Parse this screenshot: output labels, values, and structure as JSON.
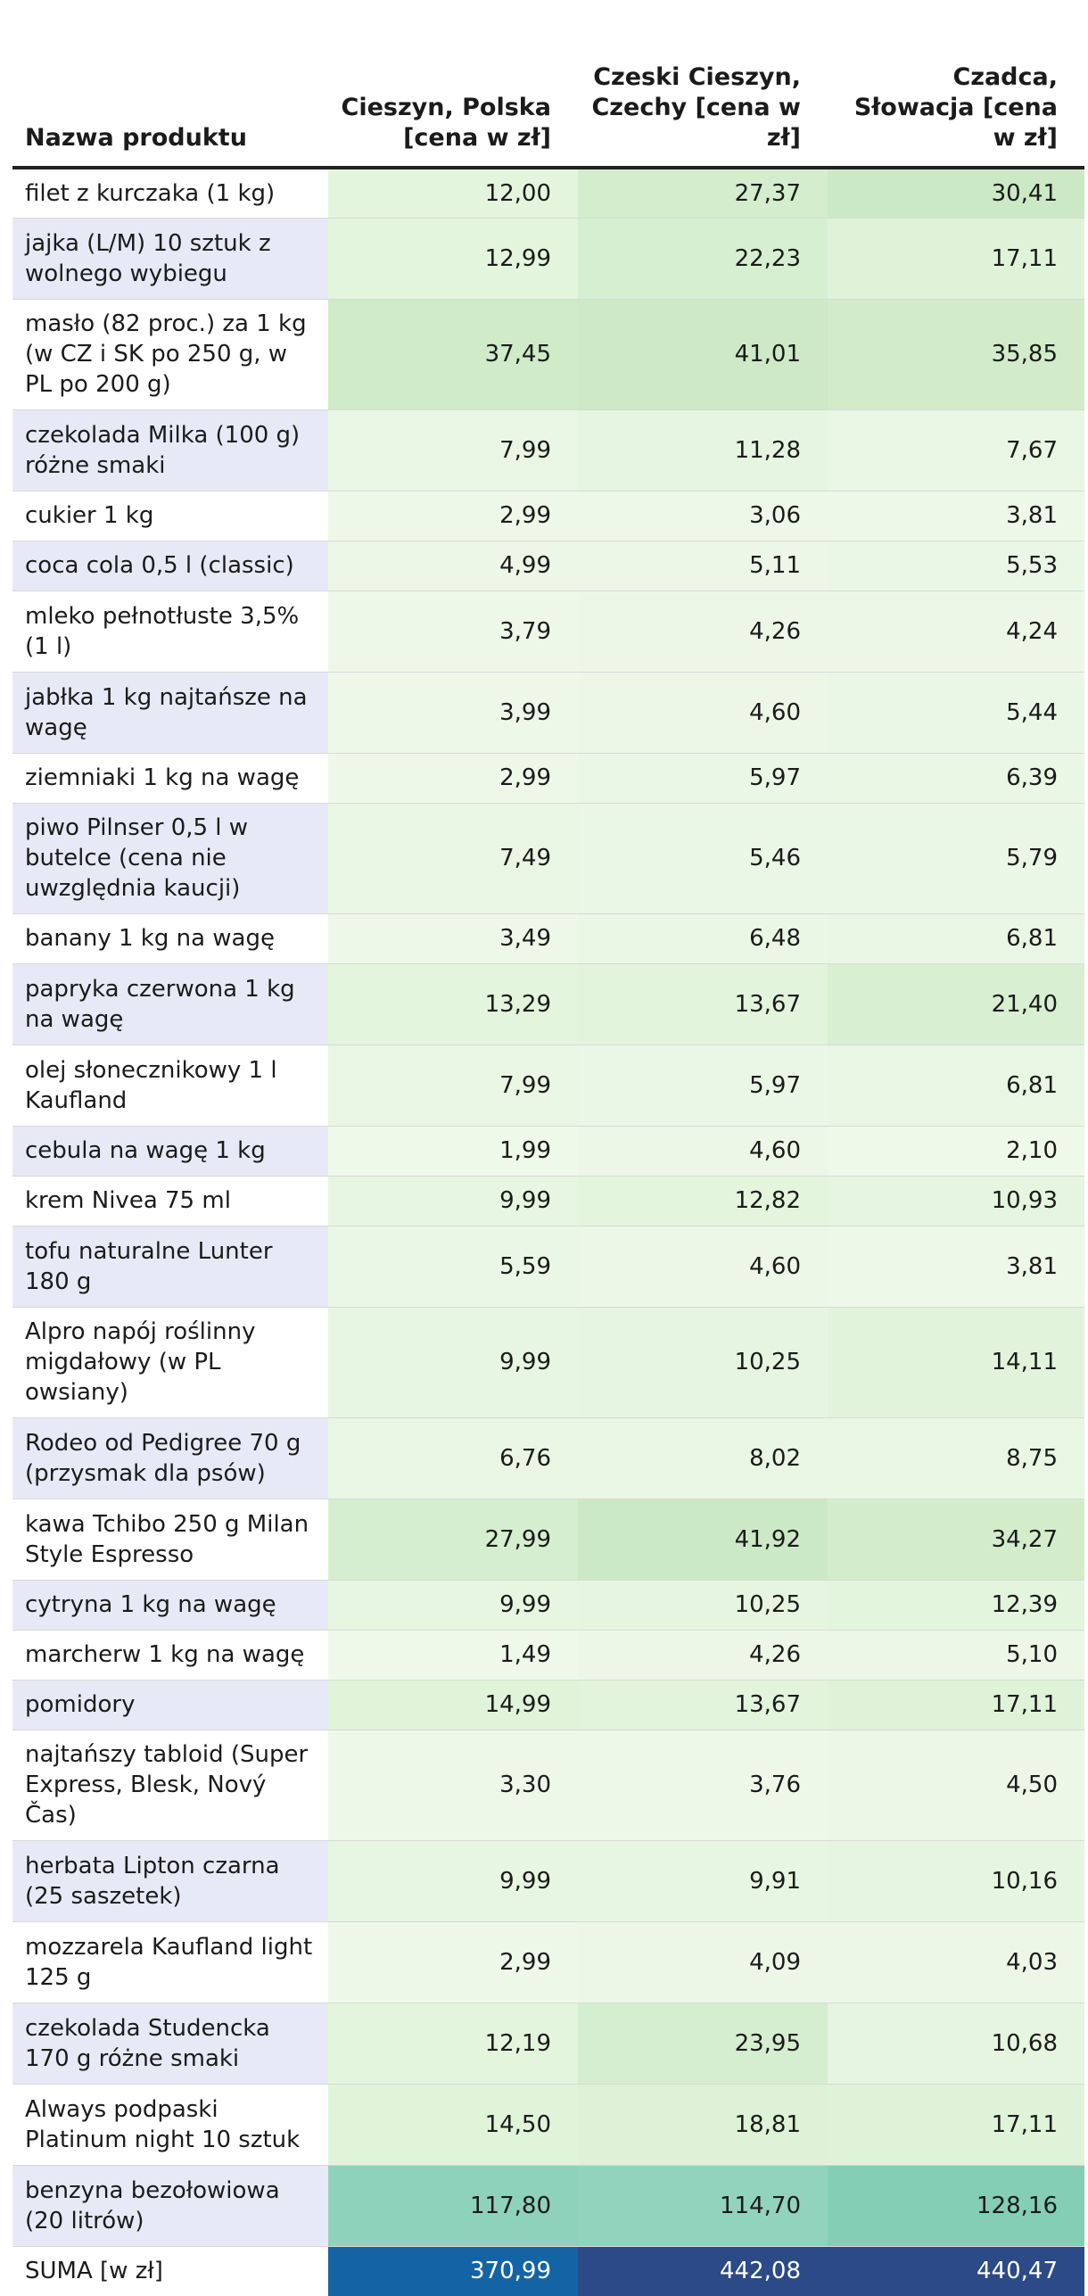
{
  "chart_data": {
    "type": "table",
    "headers": [
      "Nazwa produktu",
      "Cieszyn, Polska [cena w zł]",
      "Czeski Cieszyn, Czechy [cena w zł]",
      "Czadca, Słowacja [cena w zł]"
    ],
    "rows": [
      {
        "name": "filet z kurczaka (1 kg)",
        "values": [
          "12,00",
          "27,37",
          "30,41"
        ],
        "shade": [
          "#e4f5de",
          "#d3edcd",
          "#cbe9c5"
        ]
      },
      {
        "name": "jajka (L/M) 10 sztuk z wolnego wybiegu",
        "values": [
          "12,99",
          "22,23",
          "17,11"
        ],
        "shade": [
          "#e3f5dd",
          "#d7efd1",
          "#dff3d9"
        ]
      },
      {
        "name": "masło (82 proc.) za 1 kg (w CZ i SK po 250 g, w PL po 200 g)",
        "values": [
          "37,45",
          "41,01",
          "35,85"
        ],
        "shade": [
          "#cfebc8",
          "#cde9c6",
          "#d2ecca"
        ]
      },
      {
        "name": "czekolada Milka (100 g) różne smaki",
        "values": [
          "7,99",
          "11,28",
          "7,67"
        ],
        "shade": [
          "#e9f6e3",
          "#e5f5df",
          "#e9f6e3"
        ]
      },
      {
        "name": "cukier 1 kg",
        "values": [
          "2,99",
          "3,06",
          "3,81"
        ],
        "shade": [
          "#eef8e9",
          "#eef8e9",
          "#edf8e8"
        ]
      },
      {
        "name": "coca cola 0,5 l (classic)",
        "values": [
          "4,99",
          "5,11",
          "5,53"
        ],
        "shade": [
          "#ecf7e7",
          "#ecf7e7",
          "#ebf7e6"
        ]
      },
      {
        "name": "mleko pełnotłuste 3,5% (1 l)",
        "values": [
          "3,79",
          "4,26",
          "4,24"
        ],
        "shade": [
          "#edf8e8",
          "#edf7e7",
          "#edf7e7"
        ]
      },
      {
        "name": "jabłka 1 kg najtańsze na wagę",
        "values": [
          "3,99",
          "4,60",
          "5,44"
        ],
        "shade": [
          "#edf8e8",
          "#ecf7e7",
          "#ebf7e6"
        ]
      },
      {
        "name": "ziemniaki 1 kg na wagę",
        "values": [
          "2,99",
          "5,97",
          "6,39"
        ],
        "shade": [
          "#eef8e9",
          "#ebf7e6",
          "#eaf7e5"
        ]
      },
      {
        "name": "piwo Pilnser 0,5 l w butelce (cena nie uwzględnia kaucji)",
        "values": [
          "7,49",
          "5,46",
          "5,79"
        ],
        "shade": [
          "#e9f6e3",
          "#ebf7e6",
          "#ebf7e6"
        ]
      },
      {
        "name": "banany 1 kg na wagę",
        "values": [
          "3,49",
          "6,48",
          "6,81"
        ],
        "shade": [
          "#eef8e9",
          "#eaf7e5",
          "#eaf6e4"
        ]
      },
      {
        "name": "papryka czerwona 1 kg na wagę",
        "values": [
          "13,29",
          "13,67",
          "21,40"
        ],
        "shade": [
          "#e3f5dd",
          "#e2f4dc",
          "#d8efd2"
        ]
      },
      {
        "name": "olej słonecznikowy 1 l Kaufland",
        "values": [
          "7,99",
          "5,97",
          "6,81"
        ],
        "shade": [
          "#e9f6e3",
          "#ebf7e6",
          "#eaf6e4"
        ]
      },
      {
        "name": "cebula na wagę 1 kg",
        "values": [
          "1,99",
          "4,60",
          "2,10"
        ],
        "shade": [
          "#eff9ea",
          "#ecf7e7",
          "#eff9ea"
        ]
      },
      {
        "name": "krem Nivea 75 ml",
        "values": [
          "9,99",
          "12,82",
          "10,93"
        ],
        "shade": [
          "#e7f6e1",
          "#e3f5dd",
          "#e5f5df"
        ]
      },
      {
        "name": "tofu naturalne Lunter 180 g",
        "values": [
          "5,59",
          "4,60",
          "3,81"
        ],
        "shade": [
          "#ebf7e6",
          "#ecf7e7",
          "#edf8e8"
        ]
      },
      {
        "name": "Alpro napój roślinny migdałowy (w PL owsiany)",
        "values": [
          "9,99",
          "10,25",
          "14,11"
        ],
        "shade": [
          "#e7f6e1",
          "#e6f5e0",
          "#e1f4db"
        ]
      },
      {
        "name": "Rodeo od Pedigree 70 g (przysmak dla psów)",
        "values": [
          "6,76",
          "8,02",
          "8,75"
        ],
        "shade": [
          "#eaf6e4",
          "#e9f6e3",
          "#e8f6e2"
        ]
      },
      {
        "name": "kawa Tchibo 250 g Milan Style Espresso",
        "values": [
          "27,99",
          "41,92",
          "34,27"
        ],
        "shade": [
          "#d6eed0",
          "#ccE9c5",
          "#d3edcb"
        ]
      },
      {
        "name": "cytryna 1 kg na wagę",
        "values": [
          "9,99",
          "10,25",
          "12,39"
        ],
        "shade": [
          "#e7f6e1",
          "#e6f5e0",
          "#e4f5de"
        ]
      },
      {
        "name": "marcherw 1 kg na wagę",
        "values": [
          "1,49",
          "4,26",
          "5,10"
        ],
        "shade": [
          "#eff9ea",
          "#edf7e7",
          "#ecf7e7"
        ]
      },
      {
        "name": "pomidory",
        "values": [
          "14,99",
          "13,67",
          "17,11"
        ],
        "shade": [
          "#e0f4da",
          "#e2f4dc",
          "#dff3d9"
        ]
      },
      {
        "name": "najtańszy tabloid (Super Express, Blesk, Nový Čas)",
        "values": [
          "3,30",
          "3,76",
          "4,50"
        ],
        "shade": [
          "#eef8e9",
          "#edf8e8",
          "#ecf7e7"
        ]
      },
      {
        "name": "herbata Lipton czarna (25 saszetek)",
        "values": [
          "9,99",
          "9,91",
          "10,16"
        ],
        "shade": [
          "#e7f6e1",
          "#e7f6e1",
          "#e6f5e0"
        ]
      },
      {
        "name": "mozzarela Kaufland light 125 g",
        "values": [
          "2,99",
          "4,09",
          "4,03"
        ],
        "shade": [
          "#eef8e9",
          "#edf7e7",
          "#edf7e7"
        ]
      },
      {
        "name": "czekolada Studencka 170 g różne smaki",
        "values": [
          "12,19",
          "23,95",
          "10,68"
        ],
        "shade": [
          "#e4f5de",
          "#d5eecf",
          "#e5f5df"
        ]
      },
      {
        "name": "Always podpaski Platinum night 10 sztuk",
        "values": [
          "14,50",
          "18,81",
          "17,11"
        ],
        "shade": [
          "#e0f4da",
          "#ddf2d6",
          "#dff3d9"
        ]
      },
      {
        "name": "benzyna bezołowiowa (20 litrów)",
        "values": [
          "117,80",
          "114,70",
          "128,16"
        ],
        "shade": [
          "#8fd2bc",
          "#92d3bd",
          "#84ceb6"
        ]
      },
      {
        "name": "SUMA [w zł]",
        "values": [
          "370,99",
          "442,08",
          "440,47"
        ],
        "shade": [
          "#1464a5",
          "#2b4a87",
          "#2b4a87"
        ]
      }
    ]
  }
}
